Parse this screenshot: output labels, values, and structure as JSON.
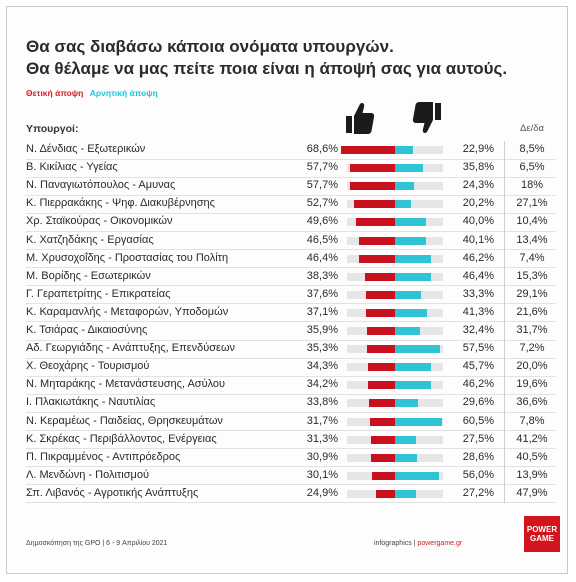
{
  "header": {
    "title_line1": "Θα σας διαβάσω κάποια ονόματα υπουργών.",
    "title_line2": "Θα θέλαμε να μας πείτε ποια είναι η άποψή σας για αυτούς.",
    "legend_positive": "Θετική άποψη",
    "legend_negative": "Αρνητική άποψη",
    "col_ministers": "Υπουργοί:",
    "col_diff": "Δε/δα"
  },
  "colors": {
    "positive": "#c8101e",
    "negative": "#2ec4d3",
    "track": "#e6e6e6"
  },
  "icons": {
    "positive": "thumbs-up-icon",
    "negative": "thumbs-down-icon"
  },
  "chart_data": {
    "type": "bar",
    "orientation": "horizontal-diverging",
    "series": [
      {
        "name": "Θετική άποψη",
        "values": [
          68.6,
          57.7,
          57.7,
          52.7,
          49.6,
          46.5,
          46.4,
          38.3,
          37.6,
          37.1,
          35.9,
          35.3,
          34.3,
          34.2,
          33.8,
          31.7,
          31.3,
          30.9,
          30.1,
          24.9
        ]
      },
      {
        "name": "Αρνητική άποψη",
        "values": [
          22.9,
          35.8,
          24.3,
          20.2,
          40.0,
          40.1,
          46.2,
          46.4,
          33.3,
          41.3,
          32.4,
          57.5,
          45.7,
          46.2,
          29.6,
          60.5,
          27.5,
          28.6,
          56.0,
          27.2
        ]
      }
    ],
    "grid": false,
    "legend": "top-left"
  },
  "rows": [
    {
      "name": "Ν. Δένδιας - Εξωτερικών",
      "pos": "68,6%",
      "neg": "22,9%",
      "diff": "8,5%"
    },
    {
      "name": "Β. Κικίλιας - Υγείας",
      "pos": "57,7%",
      "neg": "35,8%",
      "diff": "6,5%"
    },
    {
      "name": "Ν. Παναγιωτόπουλος - Αμυνας",
      "pos": "57,7%",
      "neg": "24,3%",
      "diff": "18%"
    },
    {
      "name": "Κ. Πιερρακάκης - Ψηφ. Διακυβέρνησης",
      "pos": "52,7%",
      "neg": "20,2%",
      "diff": "27,1%"
    },
    {
      "name": "Χρ. Σταϊκούρας - Οικονομικών",
      "pos": "49,6%",
      "neg": "40,0%",
      "diff": "10,4%"
    },
    {
      "name": "Κ. Χατζηδάκης - Εργασίας",
      "pos": "46,5%",
      "neg": "40,1%",
      "diff": "13,4%"
    },
    {
      "name": "Μ. Χρυσοχοΐδης - Προστασίας του Πολίτη",
      "pos": "46,4%",
      "neg": "46,2%",
      "diff": "7,4%"
    },
    {
      "name": "Μ. Βορίδης - Εσωτερικών",
      "pos": "38,3%",
      "neg": "46,4%",
      "diff": "15,3%"
    },
    {
      "name": "Γ. Γεραπετρίτης - Επικρατείας",
      "pos": "37,6%",
      "neg": "33,3%",
      "diff": "29,1%"
    },
    {
      "name": "Κ. Καραμανλής - Μεταφορών, Υποδομών",
      "pos": "37,1%",
      "neg": "41,3%",
      "diff": "21,6%"
    },
    {
      "name": "Κ. Τσιάρας - Δικαιοσύνης",
      "pos": "35,9%",
      "neg": "32,4%",
      "diff": "31,7%"
    },
    {
      "name": "Αδ. Γεωργιάδης - Ανάπτυξης, Επενδύσεων",
      "pos": "35,3%",
      "neg": "57,5%",
      "diff": "7,2%"
    },
    {
      "name": "Χ. Θεοχάρης - Τουρισμού",
      "pos": "34,3%",
      "neg": "45,7%",
      "diff": "20,0%"
    },
    {
      "name": "Ν. Μηταράκης - Μετανάστευσης, Ασύλου",
      "pos": "34,2%",
      "neg": "46,2%",
      "diff": "19,6%"
    },
    {
      "name": "Ι. Πλακιωτάκης - Ναυτιλίας",
      "pos": "33,8%",
      "neg": "29,6%",
      "diff": "36,6%"
    },
    {
      "name": "Ν. Κεραμέως - Παιδείας, Θρησκευμάτων",
      "pos": "31,7%",
      "neg": "60,5%",
      "diff": "7,8%"
    },
    {
      "name": "Κ. Σκρέκας - Περιβάλλοντος, Ενέργειας",
      "pos": "31,3%",
      "neg": "27,5%",
      "diff": "41,2%"
    },
    {
      "name": "Π. Πικραμμένος - Αντιπρόεδρος",
      "pos": "30,9%",
      "neg": "28,6%",
      "diff": "40,5%"
    },
    {
      "name": "Λ. Μενδώνη - Πολιτισμού",
      "pos": "30,1%",
      "neg": "56,0%",
      "diff": "13,9%"
    },
    {
      "name": "Σπ. Λιβανός - Αγροτικής Ανάπτυξης",
      "pos": "24,9%",
      "neg": "27,2%",
      "diff": "47,9%"
    }
  ],
  "footer": {
    "source": "Δημοσκόπηση της GPO | 6 - 9 Απριλίου 2021",
    "credit_prefix": "infographics |",
    "credit_link": "powergame.gr",
    "logo_line1": "POWER",
    "logo_line2": "GAME"
  }
}
